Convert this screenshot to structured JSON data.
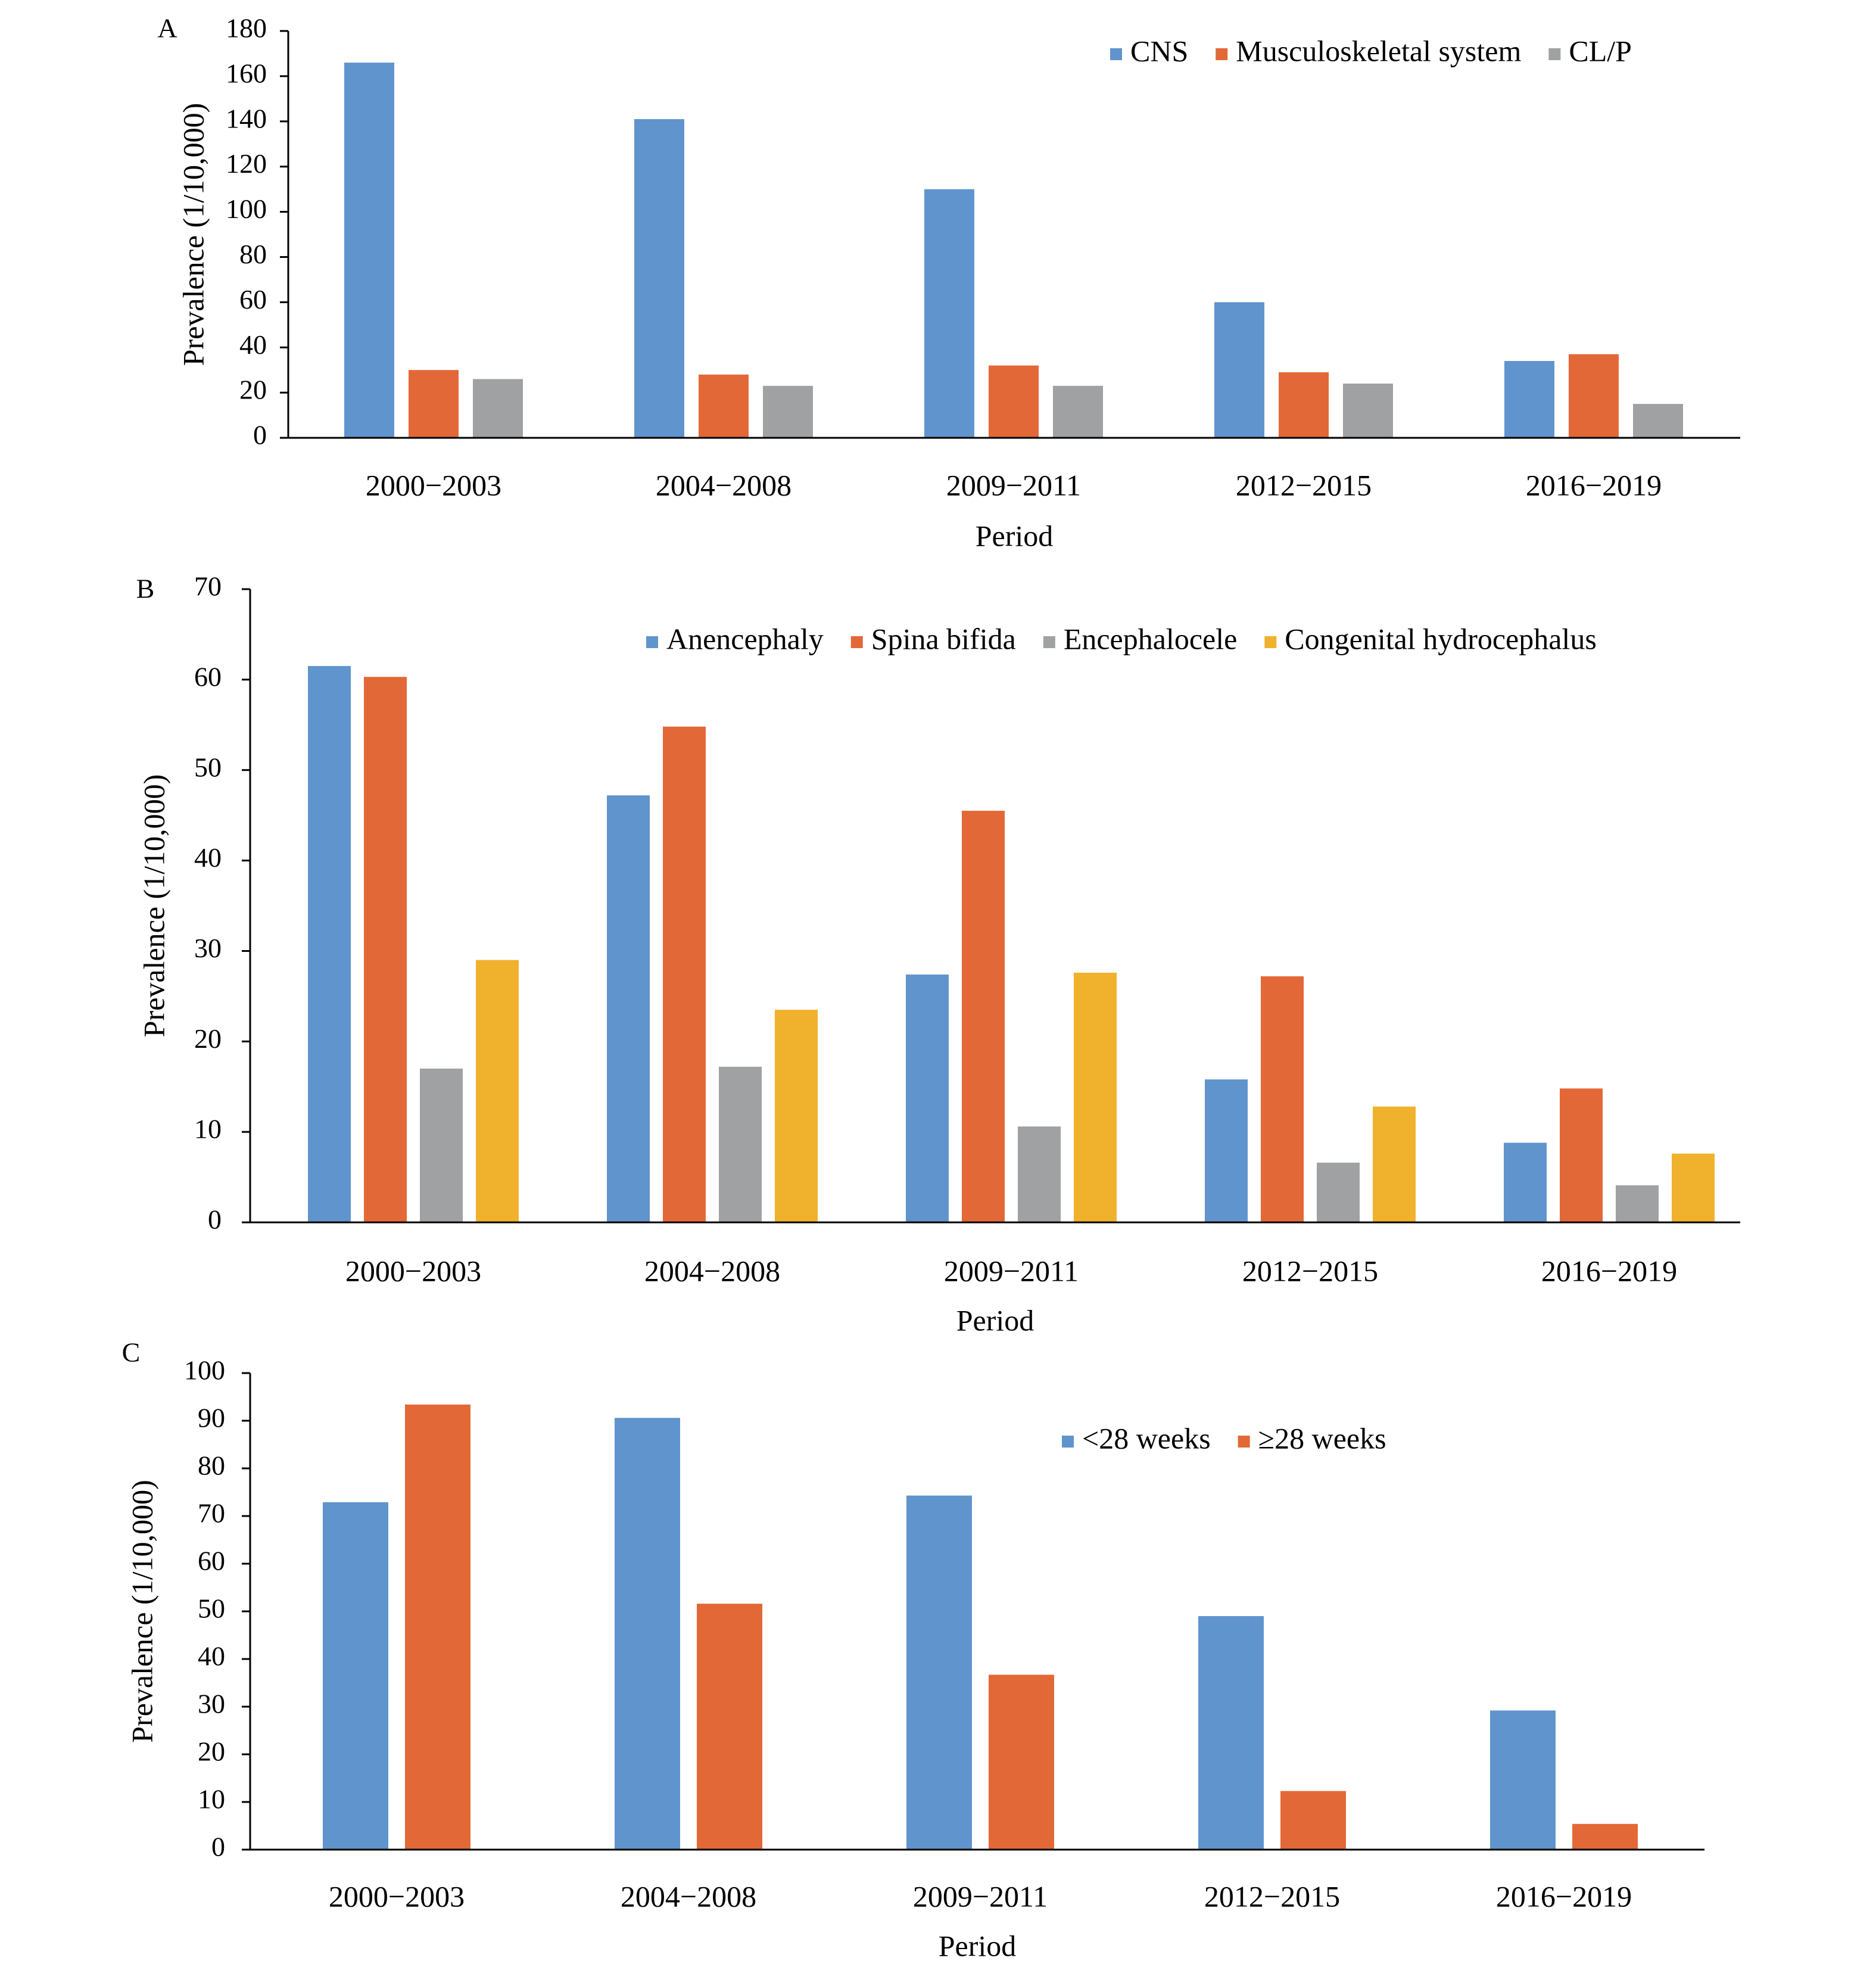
{
  "chart_data": [
    {
      "panel": "A",
      "type": "bar",
      "categories": [
        "2000−2003",
        "2004−2008",
        "2009−2011",
        "2012−2015",
        "2016−2019"
      ],
      "series": [
        {
          "name": "CNS",
          "color": "#6094cd",
          "values": [
            166,
            141,
            110,
            60,
            34
          ]
        },
        {
          "name": "Musculoskeletal system",
          "color": "#e36837",
          "values": [
            30,
            28,
            32,
            29,
            37
          ]
        },
        {
          "name": "CL/P",
          "color": "#a0a1a3",
          "values": [
            26,
            23,
            23,
            24,
            15
          ]
        }
      ],
      "xlabel": "Period",
      "ylabel": "Prevalence (1/10,000)",
      "ylim": [
        0,
        180
      ],
      "ytick_step": 20,
      "yticks": [
        "0",
        "20",
        "40",
        "60",
        "80",
        "100",
        "120",
        "140",
        "160",
        "180"
      ],
      "legend_position": "top-right",
      "grid": false
    },
    {
      "panel": "B",
      "type": "bar",
      "categories": [
        "2000−2003",
        "2004−2008",
        "2009−2011",
        "2012−2015",
        "2016−2019"
      ],
      "series": [
        {
          "name": "Anencephaly",
          "color": "#6094cd",
          "values": [
            61.5,
            47.2,
            27.4,
            15.8,
            8.8
          ]
        },
        {
          "name": "Spina bifida",
          "color": "#e36837",
          "values": [
            60.3,
            54.8,
            45.5,
            27.2,
            14.8
          ]
        },
        {
          "name": "Encephalocele",
          "color": "#a0a1a3",
          "values": [
            17.0,
            17.2,
            10.6,
            6.6,
            4.1
          ]
        },
        {
          "name": "Congenital hydrocephalus",
          "color": "#f0b12c",
          "values": [
            29.0,
            23.5,
            27.6,
            12.8,
            7.6
          ]
        }
      ],
      "xlabel": "Period",
      "ylabel": "Prevalence (1/10,000)",
      "ylim": [
        0,
        70
      ],
      "ytick_step": 10,
      "yticks": [
        "0",
        "10",
        "20",
        "30",
        "40",
        "50",
        "60",
        "70"
      ],
      "legend_position": "top-right",
      "grid": false
    },
    {
      "panel": "C",
      "type": "bar",
      "categories": [
        "2000−2003",
        "2004−2008",
        "2009−2011",
        "2012−2015",
        "2016−2019"
      ],
      "series": [
        {
          "name": "<28 weeks",
          "color": "#6094cd",
          "values": [
            72.9,
            90.6,
            74.3,
            49.0,
            29.2
          ]
        },
        {
          "name": "≥28 weeks",
          "color": "#e36837",
          "values": [
            93.4,
            51.6,
            36.7,
            12.3,
            5.4
          ]
        }
      ],
      "xlabel": "Period",
      "ylabel": "Prevalence (1/10,000)",
      "ylim": [
        0,
        100
      ],
      "ytick_step": 10,
      "yticks": [
        "0",
        "10",
        "20",
        "30",
        "40",
        "50",
        "60",
        "70",
        "80",
        "90",
        "100"
      ],
      "legend_position": "top-right",
      "grid": false
    }
  ]
}
